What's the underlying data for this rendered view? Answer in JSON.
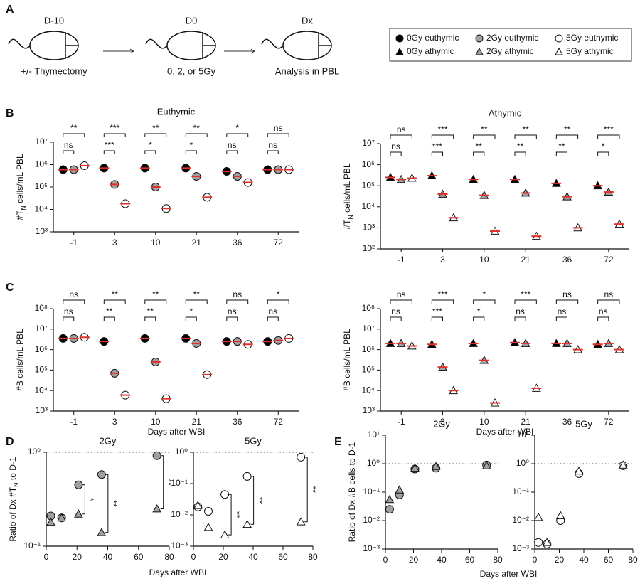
{
  "panel_labels": [
    "A",
    "B",
    "C",
    "D",
    "E"
  ],
  "diagram": {
    "stages": [
      {
        "label": "D-10",
        "caption": "+/- Thymectomy"
      },
      {
        "label": "D0",
        "caption": "0, 2, or 5Gy"
      },
      {
        "label": "Dx",
        "caption": "Analysis in PBL"
      }
    ]
  },
  "legend": [
    {
      "name": "0Gy euthymic",
      "marker": "circle",
      "color": "#000000"
    },
    {
      "name": "2Gy euthymic",
      "marker": "circle",
      "color": "#a0a0a0"
    },
    {
      "name": "5Gy euthymic",
      "marker": "circle",
      "color": "#ffffff"
    },
    {
      "name": "0Gy athymic",
      "marker": "triangle",
      "color": "#000000"
    },
    {
      "name": "2Gy athymic",
      "marker": "triangle",
      "color": "#a0a0a0"
    },
    {
      "name": "5Gy athymic",
      "marker": "triangle",
      "color": "#ffffff"
    }
  ],
  "chart_data": [
    {
      "type": "dotplot",
      "title": "Euthymic",
      "ylabel": {
        "text": "#T",
        "sub": "N",
        "rest": " cells/mL PBL"
      },
      "categories": [
        "-1",
        "3",
        "10",
        "21",
        "36",
        "72"
      ],
      "log": true,
      "mean_color": "#e0302a",
      "ylim": [
        1000,
        10000000
      ],
      "yticks": [
        {
          "value": 1000,
          "label": "10³"
        },
        {
          "value": 10000,
          "label": "10⁴"
        },
        {
          "value": 100000,
          "label": "10⁵"
        },
        {
          "value": 1000000,
          "label": "10⁶"
        },
        {
          "value": 10000000,
          "label": "10⁷"
        }
      ],
      "series": [
        {
          "name": "0Gy euthymic",
          "marker": "circle",
          "color": "#000000",
          "values": [
            600000,
            700000,
            700000,
            700000,
            500000,
            600000
          ]
        },
        {
          "name": "2Gy euthymic",
          "marker": "circle",
          "color": "#a0a0a0",
          "values": [
            600000,
            130000,
            100000,
            300000,
            300000,
            600000
          ]
        },
        {
          "name": "5Gy euthymic",
          "marker": "circle",
          "color": "#ffffff",
          "values": [
            900000,
            18000,
            11000,
            35000,
            160000,
            600000
          ]
        }
      ],
      "significance_0Gy_vs_5Gy": [
        "**",
        "***",
        "**",
        "**",
        "*",
        "ns"
      ],
      "significance_0Gy_vs_2Gy": [
        "ns",
        "***",
        "*",
        "*",
        "ns",
        "ns"
      ]
    },
    {
      "type": "dotplot",
      "title": "Athymic",
      "ylabel": {
        "text": "#T",
        "sub": "N",
        "rest": " cells/mL PBL"
      },
      "categories": [
        "-1",
        "3",
        "10",
        "21",
        "36",
        "72"
      ],
      "log": true,
      "mean_color": "#e0302a",
      "ylim": [
        100,
        10000000
      ],
      "yticks": [
        {
          "value": 100,
          "label": "10²"
        },
        {
          "value": 1000,
          "label": "10³"
        },
        {
          "value": 10000,
          "label": "10⁴"
        },
        {
          "value": 100000,
          "label": "10⁵"
        },
        {
          "value": 1000000,
          "label": "10⁶"
        },
        {
          "value": 10000000,
          "label": "10⁷"
        }
      ],
      "series": [
        {
          "name": "0Gy athymic",
          "marker": "triangle",
          "color": "#000000",
          "values": [
            250000,
            300000,
            200000,
            200000,
            130000,
            100000
          ]
        },
        {
          "name": "2Gy athymic",
          "marker": "triangle",
          "color": "#a0a0a0",
          "values": [
            200000,
            40000,
            35000,
            45000,
            30000,
            50000
          ]
        },
        {
          "name": "5Gy athymic",
          "marker": "triangle",
          "color": "#ffffff",
          "values": [
            230000,
            3000,
            700,
            400,
            1000,
            1500
          ]
        }
      ],
      "significance_0Gy_vs_5Gy": [
        "ns",
        "***",
        "**",
        "**",
        "**",
        "***"
      ],
      "significance_0Gy_vs_2Gy": [
        "ns",
        "***",
        "**",
        "**",
        "**",
        "*"
      ]
    },
    {
      "type": "dotplot",
      "ylabel": "#B cells/mL PBL",
      "xlabel": "Days after WBI",
      "categories": [
        "-1",
        "3",
        "10",
        "21",
        "36",
        "72"
      ],
      "log": true,
      "mean_color": "#e0302a",
      "ylim": [
        1000,
        100000000
      ],
      "yticks": [
        {
          "value": 1000,
          "label": "10³"
        },
        {
          "value": 10000,
          "label": "10⁴"
        },
        {
          "value": 100000,
          "label": "10⁵"
        },
        {
          "value": 1000000,
          "label": "10⁶"
        },
        {
          "value": 10000000,
          "label": "10⁷"
        },
        {
          "value": 100000000,
          "label": "10⁸"
        }
      ],
      "series": [
        {
          "name": "0Gy euthymic",
          "marker": "circle",
          "color": "#000000",
          "values": [
            3500000,
            2500000,
            3500000,
            3500000,
            2500000,
            2500000
          ]
        },
        {
          "name": "2Gy euthymic",
          "marker": "circle",
          "color": "#a0a0a0",
          "values": [
            3500000,
            70000,
            250000,
            2000000,
            2500000,
            2800000
          ]
        },
        {
          "name": "5Gy euthymic",
          "marker": "circle",
          "color": "#ffffff",
          "values": [
            4000000,
            6000,
            4000,
            60000,
            1800000,
            3500000
          ]
        }
      ],
      "significance_0Gy_vs_5Gy": [
        "ns",
        "**",
        "**",
        "**",
        "ns",
        "*"
      ],
      "significance_0Gy_vs_2Gy": [
        "ns",
        "**",
        "**",
        "*",
        "ns",
        "ns"
      ]
    },
    {
      "type": "dotplot",
      "ylabel": "#B cells/mL PBL",
      "xlabel": "Days after WBI",
      "categories": [
        "-1",
        "3",
        "10",
        "21",
        "36",
        "72"
      ],
      "log": true,
      "mean_color": "#e0302a",
      "ylim": [
        1000,
        100000000
      ],
      "yticks": [
        {
          "value": 1000,
          "label": "10³"
        },
        {
          "value": 10000,
          "label": "10⁴"
        },
        {
          "value": 100000,
          "label": "10⁵"
        },
        {
          "value": 1000000,
          "label": "10⁶"
        },
        {
          "value": 10000000,
          "label": "10⁷"
        },
        {
          "value": 100000000,
          "label": "10⁸"
        }
      ],
      "series": [
        {
          "name": "0Gy athymic",
          "marker": "triangle",
          "color": "#000000",
          "values": [
            2000000,
            1800000,
            2000000,
            2200000,
            2000000,
            1800000
          ]
        },
        {
          "name": "2Gy athymic",
          "marker": "triangle",
          "color": "#a0a0a0",
          "values": [
            2000000,
            140000,
            300000,
            2000000,
            2000000,
            2000000
          ]
        },
        {
          "name": "5Gy athymic",
          "marker": "triangle",
          "color": "#ffffff",
          "values": [
            1500000,
            10000,
            2500,
            13000,
            1000000,
            1000000
          ]
        }
      ],
      "significance_0Gy_vs_5Gy": [
        "ns",
        "***",
        "*",
        "***",
        "ns",
        "ns"
      ],
      "significance_0Gy_vs_2Gy": [
        "ns",
        "***",
        "*",
        "ns",
        "ns",
        "ns"
      ]
    },
    {
      "type": "scatter",
      "title": "2Gy",
      "ylabel": {
        "text": "Ratio of Dx #T",
        "sub": "N",
        "rest": " to D-1"
      },
      "xlabel": "Days after WBI",
      "log": true,
      "reference": 1,
      "xlim": [
        0,
        80
      ],
      "xticks": [
        0,
        20,
        40,
        60,
        80
      ],
      "ylim": [
        0.1,
        1
      ],
      "yticks": [
        {
          "value": 0.1,
          "label": "10⁻¹"
        },
        {
          "value": 1,
          "label": "10⁰"
        }
      ],
      "x": [
        3,
        10,
        21,
        36,
        72
      ],
      "series": [
        {
          "name": "2Gy euthymic",
          "marker": "circle",
          "color": "#a0a0a0",
          "values": [
            0.21,
            0.2,
            0.45,
            0.58,
            0.92
          ]
        },
        {
          "name": "2Gy athymic",
          "marker": "triangle",
          "color": "#a0a0a0",
          "values": [
            0.18,
            0.2,
            0.22,
            0.14,
            0.25
          ]
        }
      ],
      "significance": [
        {
          "x": 21,
          "label": "*"
        },
        {
          "x": 36,
          "label": "**"
        },
        {
          "x": 72,
          "label": "**"
        }
      ]
    },
    {
      "type": "scatter",
      "title": "5Gy",
      "log": true,
      "reference": 1,
      "xlim": [
        0,
        80
      ],
      "xticks": [
        0,
        20,
        40,
        60,
        80
      ],
      "ylim": [
        0.001,
        1
      ],
      "yticks": [
        {
          "value": 0.001,
          "label": "10⁻³"
        },
        {
          "value": 0.01,
          "label": "10⁻²"
        },
        {
          "value": 0.1,
          "label": "10⁻¹"
        },
        {
          "value": 1,
          "label": "10⁰"
        }
      ],
      "x": [
        3,
        10,
        21,
        36,
        72
      ],
      "series": [
        {
          "name": "5Gy euthymic",
          "marker": "circle",
          "color": "#ffffff",
          "values": [
            0.018,
            0.013,
            0.045,
            0.17,
            0.7
          ]
        },
        {
          "name": "5Gy athymic",
          "marker": "triangle",
          "color": "#ffffff",
          "values": [
            0.02,
            0.004,
            0.0023,
            0.005,
            0.006
          ]
        }
      ],
      "significance": [
        {
          "x": 21,
          "label": "**"
        },
        {
          "x": 36,
          "label": "**"
        },
        {
          "x": 72,
          "label": "**"
        }
      ]
    },
    {
      "type": "scatter",
      "title": "2Gy",
      "ylabel": "Ratio of Dx #B cells  to D-1",
      "xlabel": "Days after WBI",
      "log": true,
      "reference": 1,
      "xlim": [
        0,
        80
      ],
      "xticks": [
        0,
        20,
        40,
        60,
        80
      ],
      "ylim": [
        0.001,
        10
      ],
      "yticks": [
        {
          "value": 0.001,
          "label": "10⁻³"
        },
        {
          "value": 0.01,
          "label": "10⁻²"
        },
        {
          "value": 0.1,
          "label": "10⁻¹"
        },
        {
          "value": 1,
          "label": "10⁰"
        },
        {
          "value": 10,
          "label": "10¹"
        }
      ],
      "x": [
        3,
        10,
        21,
        36,
        72
      ],
      "series": [
        {
          "name": "2Gy euthymic",
          "marker": "circle",
          "color": "#a0a0a0",
          "values": [
            0.025,
            0.08,
            0.65,
            0.7,
            0.9
          ]
        },
        {
          "name": "2Gy athymic",
          "marker": "triangle",
          "color": "#a0a0a0",
          "values": [
            0.055,
            0.12,
            0.7,
            0.8,
            0.85
          ]
        }
      ]
    },
    {
      "type": "scatter",
      "title": "5Gy",
      "log": true,
      "reference": 1,
      "xlim": [
        0,
        80
      ],
      "xticks": [
        0,
        20,
        40,
        60,
        80
      ],
      "ylim": [
        0.001,
        10
      ],
      "yticks": [
        {
          "value": 0.001,
          "label": "10⁻³"
        },
        {
          "value": 0.01,
          "label": "10⁻²"
        },
        {
          "value": 0.1,
          "label": "10⁻¹"
        },
        {
          "value": 1,
          "label": "10⁰"
        },
        {
          "value": 10,
          "label": "10¹"
        }
      ],
      "x": [
        3,
        10,
        21,
        36,
        72
      ],
      "series": [
        {
          "name": "5Gy euthymic",
          "marker": "circle",
          "color": "#ffffff",
          "values": [
            0.0017,
            0.0015,
            0.01,
            0.45,
            0.85
          ]
        },
        {
          "name": "5Gy athymic",
          "marker": "triangle",
          "color": "#ffffff",
          "values": [
            0.013,
            0.0017,
            0.015,
            0.55,
            0.9
          ]
        }
      ]
    }
  ]
}
